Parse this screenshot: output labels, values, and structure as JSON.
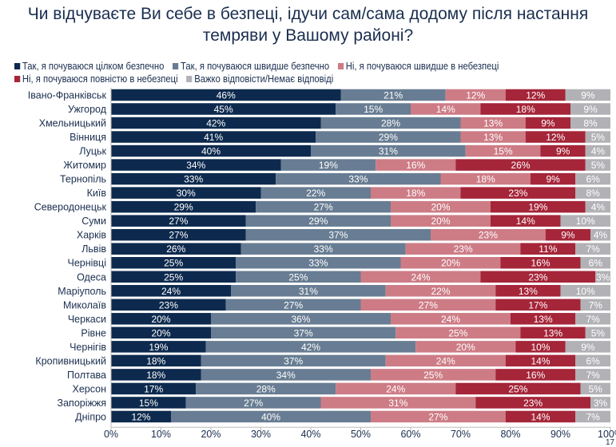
{
  "chart_data": {
    "type": "bar",
    "orientation": "horizontal",
    "stacked": true,
    "title": "Чи відчуваєте Ви себе в безпеці, ідучи сам/сама додому після настання темряви у Вашому районі?",
    "categories": [
      "Івано-Франківськ",
      "Ужгород",
      "Хмельницький",
      "Вінниця",
      "Луцьк",
      "Житомир",
      "Тернопіль",
      "Київ",
      "Северодонецьк",
      "Суми",
      "Харків",
      "Львів",
      "Чернівці",
      "Одеса",
      "Маріуполь",
      "Миколаїв",
      "Черкаси",
      "Рівне",
      "Чернігів",
      "Кропивницький",
      "Полтава",
      "Херсон",
      "Запоріжжя",
      "Дніпро"
    ],
    "series": [
      {
        "name": "Так, я почуваюся цілком безпечно",
        "color": "#0d2a4e",
        "values": [
          46,
          45,
          42,
          41,
          40,
          34,
          33,
          30,
          29,
          27,
          27,
          26,
          25,
          25,
          24,
          23,
          20,
          20,
          19,
          18,
          18,
          17,
          15,
          12
        ]
      },
      {
        "name": "Так, я почуваюся швидше безпечно",
        "color": "#687d93",
        "values": [
          21,
          15,
          28,
          29,
          31,
          19,
          33,
          22,
          27,
          29,
          37,
          33,
          33,
          25,
          31,
          27,
          36,
          37,
          42,
          37,
          34,
          28,
          27,
          40
        ]
      },
      {
        "name": "Ні, я почуваюся швидше в небезпеці",
        "color": "#cd7c86",
        "values": [
          12,
          14,
          13,
          13,
          15,
          16,
          18,
          18,
          20,
          20,
          23,
          23,
          20,
          24,
          22,
          27,
          24,
          25,
          20,
          24,
          25,
          24,
          31,
          27
        ]
      },
      {
        "name": "Ні, я почуваюся повністю в небезпеці",
        "color": "#a52539",
        "values": [
          12,
          18,
          9,
          12,
          9,
          26,
          9,
          23,
          19,
          14,
          9,
          11,
          16,
          23,
          13,
          17,
          13,
          13,
          10,
          14,
          16,
          25,
          23,
          14
        ]
      },
      {
        "name": "Важко відповісти/Немає відповіді",
        "color": "#b2b2b6",
        "values": [
          9,
          9,
          8,
          5,
          4,
          5,
          6,
          8,
          4,
          10,
          4,
          7,
          6,
          3,
          10,
          7,
          7,
          5,
          9,
          6,
          7,
          5,
          3,
          7
        ]
      }
    ],
    "xlim": [
      0,
      100
    ],
    "xticks": [
      "0%",
      "10%",
      "20%",
      "30%",
      "40%",
      "50%",
      "60%",
      "70%",
      "80%",
      "90%",
      "100%"
    ],
    "value_suffix": "%",
    "legend": "top",
    "grid": false
  },
  "page_number": "17"
}
